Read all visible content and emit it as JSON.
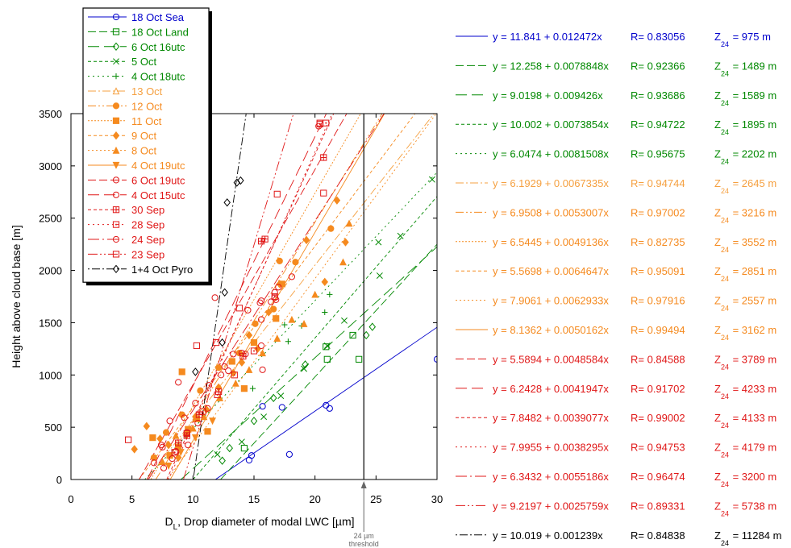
{
  "chart_data": {
    "type": "scatter",
    "xlabel_main": "D",
    "xlabel_sub": "L",
    "xlabel_rest": ", Drop diameter of modal LWC [µm]",
    "ylabel": "Height above cloud base [m]",
    "xlim": [
      0,
      30
    ],
    "ylim": [
      0,
      3500
    ],
    "xticks": [
      0,
      5,
      10,
      15,
      20,
      25,
      30
    ],
    "yticks": [
      0,
      500,
      1000,
      1500,
      2000,
      2500,
      3000,
      3500
    ],
    "grid": false,
    "legend_position": "top-left",
    "threshold": {
      "x": 24,
      "line1": "24 µm",
      "line2": "threshold"
    },
    "z_label": "Z",
    "z_sub": "24",
    "series": [
      {
        "name": "18 Oct Sea",
        "color": "#0000CC",
        "marker": "circle-open",
        "dash": "",
        "eq": "y = 11.841 + 0.012472x",
        "r": "R= 0.83056",
        "z": "= 975 m",
        "a": 11.841,
        "b": 0.012472,
        "points": [
          [
            14.6,
            185
          ],
          [
            14.8,
            230
          ],
          [
            15.7,
            700
          ],
          [
            17.3,
            690
          ],
          [
            17.9,
            240
          ],
          [
            20.9,
            710
          ],
          [
            21.2,
            680
          ],
          [
            30,
            1150
          ]
        ]
      },
      {
        "name": "18 Oct Land",
        "color": "#008800",
        "marker": "square-open",
        "dash": "10,4",
        "eq": "y = 12.258 + 0.0078848x",
        "r": "R= 0.92366",
        "z": "= 1489 m",
        "a": 12.258,
        "b": 0.0078848,
        "points": [
          [
            14.2,
            300
          ],
          [
            20.9,
            1270
          ],
          [
            21.0,
            1150
          ],
          [
            23.1,
            1380
          ],
          [
            23.6,
            1150
          ]
        ]
      },
      {
        "name": "6 Oct 16utc",
        "color": "#008800",
        "marker": "diamond-open",
        "dash": "14,6",
        "eq": "y = 9.0198 + 0.009426x",
        "r": "R= 0.93686",
        "z": "= 1589 m",
        "a": 9.0198,
        "b": 0.009426,
        "points": [
          [
            12.4,
            180
          ],
          [
            13.0,
            300
          ],
          [
            15.0,
            560
          ],
          [
            16.6,
            780
          ],
          [
            19.2,
            1100
          ],
          [
            24.2,
            1380
          ],
          [
            24.7,
            1460
          ]
        ]
      },
      {
        "name": "5 Oct",
        "color": "#008800",
        "marker": "x",
        "dash": "4,3",
        "eq": "y = 10.002 + 0.0073854x",
        "r": "R= 0.94722",
        "z": "= 1895 m",
        "a": 10.002,
        "b": 0.0073854,
        "points": [
          [
            12.0,
            240
          ],
          [
            14.0,
            360
          ],
          [
            15.8,
            600
          ],
          [
            17.2,
            800
          ],
          [
            19.1,
            1060
          ],
          [
            21.0,
            1280
          ],
          [
            22.4,
            1520
          ],
          [
            25.2,
            2270
          ],
          [
            25.3,
            1950
          ],
          [
            27.0,
            2330
          ],
          [
            29.6,
            2870
          ]
        ]
      },
      {
        "name": "4 Oct 18utc",
        "color": "#008800",
        "marker": "plus",
        "dash": "2,4",
        "eq": "y = 6.0474 + 0.0081508x",
        "r": "R= 0.95675",
        "z": "= 2202 m",
        "a": 6.0474,
        "b": 0.0081508,
        "points": [
          [
            14.9,
            870
          ],
          [
            17.8,
            1320
          ],
          [
            18.9,
            1470
          ],
          [
            20.8,
            1600
          ],
          [
            21.2,
            1770
          ],
          [
            17.5,
            1480
          ]
        ]
      },
      {
        "name": "13 Oct",
        "color": "#F5A040",
        "marker": "triangle-open",
        "dash": "10,3,2,3",
        "eq": "y = 6.1929 + 0.0067335x",
        "r": "R= 0.94744",
        "z": "= 2645 m",
        "a": 6.1929,
        "b": 0.0067335,
        "points": []
      },
      {
        "name": "12 Oct",
        "color": "#F58A1F",
        "marker": "circle-filled",
        "dash": "10,3,2,3,2,3",
        "eq": "y = 6.9508 + 0.0053007x",
        "r": "R= 0.97002",
        "z": "= 3216 m",
        "a": 6.9508,
        "b": 0.0053007,
        "points": [
          [
            6.8,
            210
          ],
          [
            7.8,
            450
          ],
          [
            9.1,
            620
          ],
          [
            10.6,
            850
          ],
          [
            12.1,
            1070
          ],
          [
            13.8,
            1210
          ],
          [
            15.1,
            1490
          ],
          [
            16.6,
            1630
          ],
          [
            17.1,
            2090
          ],
          [
            18.4,
            2080
          ],
          [
            21.3,
            2400
          ]
        ]
      },
      {
        "name": "11 Oct",
        "color": "#F58A1F",
        "marker": "square-filled",
        "dash": "2,2",
        "eq": "y = 6.5445 + 0.0049136x",
        "r": "R= 0.82735",
        "z": "= 3552 m",
        "a": 6.5445,
        "b": 0.0049136,
        "points": [
          [
            6.7,
            400
          ],
          [
            8.1,
            230
          ],
          [
            8.8,
            310
          ],
          [
            9.1,
            1030
          ],
          [
            9.6,
            480
          ],
          [
            10.3,
            580
          ],
          [
            11.2,
            460
          ],
          [
            13.2,
            1130
          ],
          [
            14.2,
            870
          ],
          [
            15.0,
            1310
          ],
          [
            16.8,
            1540
          ],
          [
            17.3,
            1870
          ]
        ]
      },
      {
        "name": "9 Oct",
        "color": "#F58A1F",
        "marker": "diamond-filled",
        "dash": "4,3",
        "eq": "y = 5.5698 + 0.0064647x",
        "r": "R= 0.95091",
        "z": "= 2851 m",
        "a": 5.5698,
        "b": 0.0064647,
        "points": [
          [
            5.2,
            290
          ],
          [
            6.2,
            510
          ],
          [
            7.3,
            390
          ],
          [
            8.0,
            330
          ],
          [
            8.8,
            210
          ],
          [
            9.5,
            430
          ],
          [
            10.2,
            600
          ],
          [
            11.1,
            670
          ],
          [
            12.1,
            880
          ],
          [
            13.3,
            1020
          ],
          [
            14.6,
            1380
          ],
          [
            16.2,
            1600
          ],
          [
            17.1,
            1870
          ],
          [
            19.3,
            2290
          ],
          [
            20.8,
            1890
          ],
          [
            21.8,
            2670
          ],
          [
            22.5,
            2270
          ],
          [
            14.0,
            1120
          ],
          [
            15.3,
            1250
          ]
        ]
      },
      {
        "name": "8 Oct",
        "color": "#F58A1F",
        "marker": "triangle-filled",
        "dash": "2,3",
        "eq": "y = 7.9061 + 0.0062933x",
        "r": "R= 0.97916",
        "z": "= 2557 m",
        "a": 7.9061,
        "b": 0.0062933,
        "points": [
          [
            7.5,
            170
          ],
          [
            8.6,
            420
          ],
          [
            10.0,
            490
          ],
          [
            10.9,
            600
          ],
          [
            12.2,
            780
          ],
          [
            13.5,
            920
          ],
          [
            14.6,
            1050
          ],
          [
            15.7,
            1210
          ],
          [
            16.9,
            1350
          ],
          [
            18.1,
            1530
          ],
          [
            20.0,
            1770
          ],
          [
            22.3,
            2080
          ],
          [
            22.8,
            2450
          ],
          [
            19.1,
            1490
          ]
        ]
      },
      {
        "name": "4 Oct 19utc",
        "color": "#F58A1F",
        "marker": "triangle-down-filled",
        "dash": "",
        "eq": "y = 8.1362 + 0.0050162x",
        "r": "R= 0.99494",
        "z": "= 3162 m",
        "a": 8.1362,
        "b": 0.0050162,
        "points": [
          [
            8.0,
            130
          ],
          [
            9.0,
            260
          ],
          [
            10.2,
            400
          ],
          [
            11.6,
            560
          ]
        ]
      },
      {
        "name": "6 Oct 19utc",
        "color": "#E01818",
        "marker": "circle-open",
        "dash": "10,4",
        "eq": "y = 5.5894 + 0.0048584x",
        "r": "R= 0.84588",
        "z": "= 3789 m",
        "a": 5.5894,
        "b": 0.0048584,
        "points": [
          [
            6.8,
            160
          ],
          [
            7.5,
            310
          ],
          [
            8.3,
            200
          ],
          [
            8.8,
            930
          ],
          [
            9.6,
            330
          ],
          [
            10.4,
            540
          ],
          [
            11.8,
            1740
          ],
          [
            12.9,
            1040
          ],
          [
            14.3,
            1200
          ],
          [
            15.6,
            1530
          ],
          [
            16.7,
            1790
          ],
          [
            17.0,
            1840
          ],
          [
            15.6,
            1710
          ],
          [
            16.4,
            1700
          ],
          [
            18.1,
            1940
          ],
          [
            15.7,
            1050
          ],
          [
            20.3,
            3380
          ]
        ]
      },
      {
        "name": "4 Oct 15utc",
        "color": "#E01818",
        "marker": "circle-open",
        "dash": "14,6",
        "eq": "y = 6.2428 + 0.0041947x",
        "r": "R= 0.91702",
        "z": "= 4233 m",
        "a": 6.2428,
        "b": 0.0041947,
        "points": [
          [
            7.4,
            330
          ],
          [
            8.1,
            560
          ],
          [
            9.3,
            590
          ],
          [
            10.2,
            730
          ],
          [
            11.3,
            900
          ],
          [
            12.6,
            1080
          ],
          [
            14.0,
            1210
          ],
          [
            15.6,
            1280
          ],
          [
            14.5,
            1620
          ],
          [
            16.8,
            1720
          ]
        ]
      },
      {
        "name": "30 Sep",
        "color": "#E01818",
        "marker": "square-plus",
        "dash": "4,3",
        "eq": "y = 7.8482 + 0.0039077x",
        "r": "R= 0.99002",
        "z": "= 4133 m",
        "a": 7.8482,
        "b": 0.0039077,
        "points": [
          [
            8.8,
            350
          ],
          [
            9.5,
            420
          ],
          [
            10.5,
            620
          ],
          [
            12.1,
            840
          ],
          [
            14.1,
            1180
          ],
          [
            15.6,
            2280
          ],
          [
            15.9,
            2300
          ],
          [
            20.7,
            3080
          ]
        ]
      },
      {
        "name": "28 Sep",
        "color": "#E01818",
        "marker": "square-dot",
        "dash": "2,4",
        "eq": "y = 7.9955 + 0.0038295x",
        "r": "R= 0.94753",
        "z": "= 4179 m",
        "a": 7.9955,
        "b": 0.0038295,
        "points": [
          [
            8.5,
            260
          ],
          [
            9.5,
            440
          ],
          [
            10.8,
            650
          ],
          [
            12.0,
            810
          ],
          [
            13.4,
            1000
          ],
          [
            15.0,
            1230
          ],
          [
            16.7,
            1750
          ],
          [
            20.4,
            3400
          ],
          [
            20.9,
            3410
          ]
        ]
      },
      {
        "name": "24 Sep",
        "color": "#E01818",
        "marker": "circle-open",
        "dash": "14,4,2,4",
        "eq": "y = 6.3432 + 0.0055186x",
        "r": "R= 0.96474",
        "z": "= 3200 m",
        "a": 6.3432,
        "b": 0.0055186,
        "points": [
          [
            7.6,
            110
          ],
          [
            8.6,
            270
          ],
          [
            9.5,
            450
          ],
          [
            11.2,
            680
          ],
          [
            12.3,
            1000
          ],
          [
            13.3,
            1200
          ],
          [
            15.5,
            1690
          ],
          [
            16.7,
            1740
          ]
        ]
      },
      {
        "name": "23 Sep",
        "color": "#E01818",
        "marker": "square-open",
        "dash": "12,3,2,3,2,3",
        "eq": "y = 9.2197 + 0.0025759x",
        "r": "R= 0.89331",
        "z": "= 5738 m",
        "a": 9.2197,
        "b": 0.0025759,
        "points": [
          [
            4.7,
            380
          ],
          [
            10.3,
            1280
          ],
          [
            11.9,
            1310
          ],
          [
            13.8,
            1640
          ],
          [
            16.9,
            2730
          ],
          [
            20.7,
            2740
          ],
          [
            20.4,
            3410
          ]
        ]
      },
      {
        "name": "1+4 Oct Pyro",
        "color": "#000000",
        "marker": "diamond-open",
        "dash": "2,3,10,3",
        "eq": "y = 10.019 + 0.001239x",
        "r": "R= 0.84838",
        "z": "= 11284 m",
        "a": 10.019,
        "b": 0.001239,
        "points": [
          [
            10.2,
            1030
          ],
          [
            12.4,
            1310
          ],
          [
            12.6,
            1790
          ],
          [
            13.6,
            2840
          ],
          [
            13.9,
            2860
          ],
          [
            12.8,
            2650
          ]
        ]
      }
    ]
  }
}
